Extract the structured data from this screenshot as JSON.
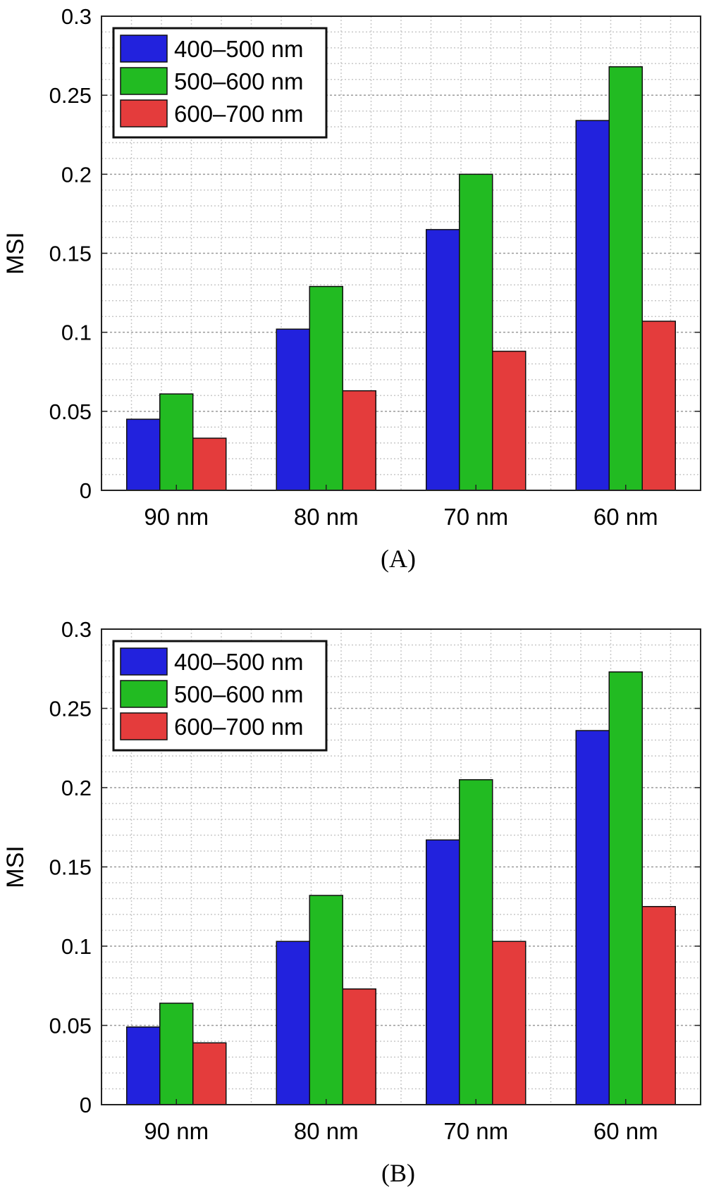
{
  "chart_data": [
    {
      "type": "bar",
      "caption": "(A)",
      "ylabel": "MSI",
      "ylim": [
        0,
        0.3
      ],
      "yticks": [
        "0",
        "0.05",
        "0.1",
        "0.15",
        "0.2",
        "0.25",
        "0.3"
      ],
      "categories": [
        "90 nm",
        "80 nm",
        "70 nm",
        "60 nm"
      ],
      "grid": "major and minor, dotted",
      "legend_position": "top-left",
      "series": [
        {
          "name": "400–500 nm",
          "color": "#2222dd",
          "values": [
            0.045,
            0.102,
            0.165,
            0.234
          ]
        },
        {
          "name": "500–600 nm",
          "color": "#22bb22",
          "values": [
            0.061,
            0.129,
            0.2,
            0.268
          ]
        },
        {
          "name": "600–700 nm",
          "color": "#e43c3c",
          "values": [
            0.033,
            0.063,
            0.088,
            0.107
          ]
        }
      ]
    },
    {
      "type": "bar",
      "caption": "(B)",
      "ylabel": "MSI",
      "ylim": [
        0,
        0.3
      ],
      "yticks": [
        "0",
        "0.05",
        "0.1",
        "0.15",
        "0.2",
        "0.25",
        "0.3"
      ],
      "categories": [
        "90 nm",
        "80 nm",
        "70 nm",
        "60 nm"
      ],
      "grid": "major and minor, dotted",
      "legend_position": "top-left",
      "series": [
        {
          "name": "400–500 nm",
          "color": "#2222dd",
          "values": [
            0.049,
            0.103,
            0.167,
            0.236
          ]
        },
        {
          "name": "500–600 nm",
          "color": "#22bb22",
          "values": [
            0.064,
            0.132,
            0.205,
            0.273
          ]
        },
        {
          "name": "600–700 nm",
          "color": "#e43c3c",
          "values": [
            0.039,
            0.073,
            0.103,
            0.125
          ]
        }
      ]
    }
  ]
}
